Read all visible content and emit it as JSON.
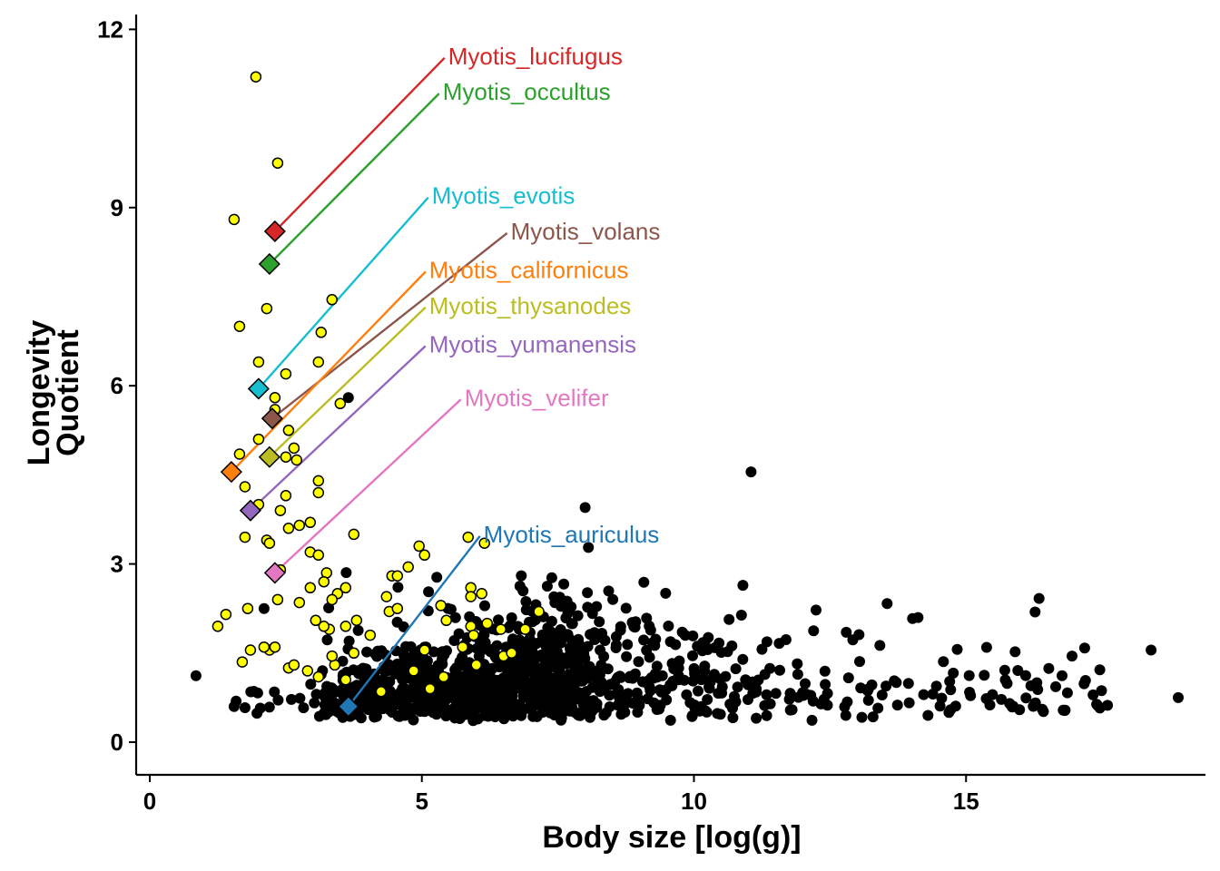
{
  "chart_data": {
    "type": "scatter",
    "xlabel": "Body size [log(g)]",
    "ylabel": [
      "Longevity",
      "Quotient"
    ],
    "xlim": [
      -0.25,
      19.4
    ],
    "ylim": [
      -0.55,
      12.25
    ],
    "xticks": [
      0,
      5,
      10,
      15
    ],
    "yticks": [
      0,
      3,
      6,
      9,
      12
    ],
    "grid": false,
    "legend": "none",
    "colors": {
      "background_points": "#000000",
      "bat_points": "#ffff00",
      "bat_outline": "#000000"
    },
    "bat_points": [
      [
        1.95,
        11.2
      ],
      [
        2.35,
        9.75
      ],
      [
        1.55,
        8.8
      ],
      [
        1.65,
        7.0
      ],
      [
        2.15,
        7.3
      ],
      [
        3.35,
        7.45
      ],
      [
        3.15,
        6.9
      ],
      [
        2.0,
        6.4
      ],
      [
        3.1,
        6.4
      ],
      [
        2.5,
        6.2
      ],
      [
        2.3,
        5.8
      ],
      [
        2.3,
        5.6
      ],
      [
        3.5,
        5.7
      ],
      [
        2.0,
        5.1
      ],
      [
        2.55,
        5.25
      ],
      [
        2.65,
        4.95
      ],
      [
        2.5,
        4.8
      ],
      [
        2.7,
        4.75
      ],
      [
        1.65,
        4.85
      ],
      [
        3.1,
        4.4
      ],
      [
        3.1,
        4.2
      ],
      [
        1.75,
        4.3
      ],
      [
        2.5,
        4.15
      ],
      [
        2.0,
        4.0
      ],
      [
        2.4,
        3.9
      ],
      [
        2.95,
        3.7
      ],
      [
        2.75,
        3.65
      ],
      [
        2.55,
        3.6
      ],
      [
        3.75,
        3.5
      ],
      [
        1.75,
        3.45
      ],
      [
        2.15,
        3.4
      ],
      [
        2.2,
        3.35
      ],
      [
        4.95,
        3.3
      ],
      [
        2.95,
        3.2
      ],
      [
        3.1,
        3.15
      ],
      [
        5.05,
        3.15
      ],
      [
        2.4,
        2.9
      ],
      [
        3.25,
        2.85
      ],
      [
        4.45,
        2.8
      ],
      [
        4.55,
        2.8
      ],
      [
        2.95,
        2.6
      ],
      [
        3.2,
        2.7
      ],
      [
        3.45,
        2.5
      ],
      [
        3.6,
        2.6
      ],
      [
        3.35,
        2.4
      ],
      [
        2.35,
        2.4
      ],
      [
        2.75,
        2.35
      ],
      [
        1.8,
        2.25
      ],
      [
        1.4,
        2.15
      ],
      [
        1.25,
        1.95
      ],
      [
        2.2,
        1.55
      ],
      [
        2.1,
        1.6
      ],
      [
        2.3,
        1.6
      ],
      [
        1.7,
        1.35
      ],
      [
        2.55,
        1.25
      ],
      [
        2.65,
        1.3
      ],
      [
        3.6,
        1.95
      ],
      [
        3.3,
        1.9
      ],
      [
        3.05,
        2.05
      ],
      [
        3.2,
        1.95
      ],
      [
        3.8,
        2.05
      ],
      [
        3.4,
        1.3
      ],
      [
        3.35,
        1.45
      ],
      [
        3.6,
        1.05
      ],
      [
        4.25,
        0.85
      ],
      [
        5.15,
        0.9
      ],
      [
        4.85,
        1.2
      ],
      [
        5.9,
        2.6
      ],
      [
        6.2,
        2.0
      ],
      [
        6.45,
        1.9
      ],
      [
        5.9,
        1.95
      ],
      [
        5.95,
        1.8
      ],
      [
        5.75,
        1.6
      ],
      [
        5.05,
        1.55
      ],
      [
        4.4,
        2.2
      ],
      [
        4.55,
        2.25
      ],
      [
        5.35,
        2.3
      ],
      [
        5.9,
        2.45
      ],
      [
        6.1,
        2.5
      ],
      [
        6.0,
        1.3
      ],
      [
        6.5,
        1.45
      ],
      [
        6.9,
        1.9
      ],
      [
        7.15,
        2.2
      ],
      [
        5.85,
        3.45
      ],
      [
        6.15,
        3.35
      ],
      [
        4.75,
        2.95
      ],
      [
        5.45,
        2.05
      ],
      [
        6.65,
        1.5
      ],
      [
        3.1,
        1.1
      ],
      [
        2.9,
        1.2
      ],
      [
        3.75,
        1.5
      ],
      [
        4.05,
        1.8
      ],
      [
        4.35,
        2.45
      ],
      [
        1.85,
        1.55
      ],
      [
        5.4,
        1.1
      ]
    ],
    "highlighted": [
      {
        "name": "Myotis_lucifugus",
        "color": "#d62728",
        "point": [
          2.3,
          8.6
        ],
        "label_at": [
          5.45,
          11.55
        ]
      },
      {
        "name": "Myotis_occultus",
        "color": "#2ca02c",
        "point": [
          2.2,
          8.05
        ],
        "label_at": [
          5.35,
          10.95
        ]
      },
      {
        "name": "Myotis_evotis",
        "color": "#17becf",
        "point": [
          2.0,
          5.95
        ],
        "label_at": [
          5.15,
          9.2
        ]
      },
      {
        "name": "Myotis_volans",
        "color": "#8c564b",
        "point": [
          2.25,
          5.45
        ],
        "label_at": [
          6.6,
          8.6
        ]
      },
      {
        "name": "Myotis_californicus",
        "color": "#ff7f0e",
        "point": [
          1.5,
          4.55
        ],
        "label_at": [
          5.1,
          7.95
        ]
      },
      {
        "name": "Myotis_thysanodes",
        "color": "#bcbd22",
        "point": [
          2.2,
          4.8
        ],
        "label_at": [
          5.1,
          7.35
        ]
      },
      {
        "name": "Myotis_yumanensis",
        "color": "#9467bd",
        "point": [
          1.85,
          3.9
        ],
        "label_at": [
          5.1,
          6.7
        ]
      },
      {
        "name": "Myotis_velifer",
        "color": "#e377c2",
        "point": [
          2.3,
          2.85
        ],
        "label_at": [
          5.75,
          5.8
        ]
      },
      {
        "name": "Myotis_auriculus",
        "color": "#1f77b4",
        "point": [
          3.65,
          0.6
        ],
        "label_at": [
          6.1,
          3.5
        ]
      }
    ]
  }
}
